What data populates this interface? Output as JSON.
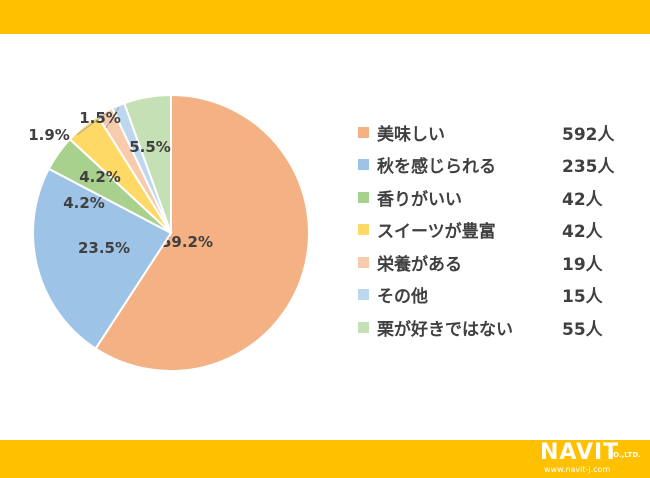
{
  "chart_data": {
    "type": "pie",
    "slices": [
      {
        "label": "美味しい",
        "count": "592人",
        "percent_label": "59.2%",
        "value": 59.2,
        "color": "#F4B183"
      },
      {
        "label": "秋を感じられる",
        "count": "235人",
        "percent_label": "23.5%",
        "value": 23.5,
        "color": "#9DC3E6"
      },
      {
        "label": "香りがいい",
        "count": "42人",
        "percent_label": "4.2%",
        "value": 4.2,
        "color": "#A9D18E"
      },
      {
        "label": "スイーツが豊富",
        "count": "42人",
        "percent_label": "4.2%",
        "value": 4.2,
        "color": "#FFD966"
      },
      {
        "label": "栄養がある",
        "count": "19人",
        "percent_label": "1.9%",
        "value": 1.9,
        "color": "#F8CBAD"
      },
      {
        "label": "その他",
        "count": "15人",
        "percent_label": "1.5%",
        "value": 1.5,
        "color": "#BDD7EE"
      },
      {
        "label": "栗が好きではない",
        "count": "55人",
        "percent_label": "5.5%",
        "value": 5.5,
        "color": "#C5E0B4"
      }
    ],
    "legend_position": "right"
  },
  "colors": {
    "header_band": "#FFC000",
    "footer_band": "#FFC000",
    "text": "#404040"
  },
  "logo": {
    "name": "NAVIT",
    "suffix": "CO.,LTD.",
    "url": "www.navit-j.com"
  }
}
